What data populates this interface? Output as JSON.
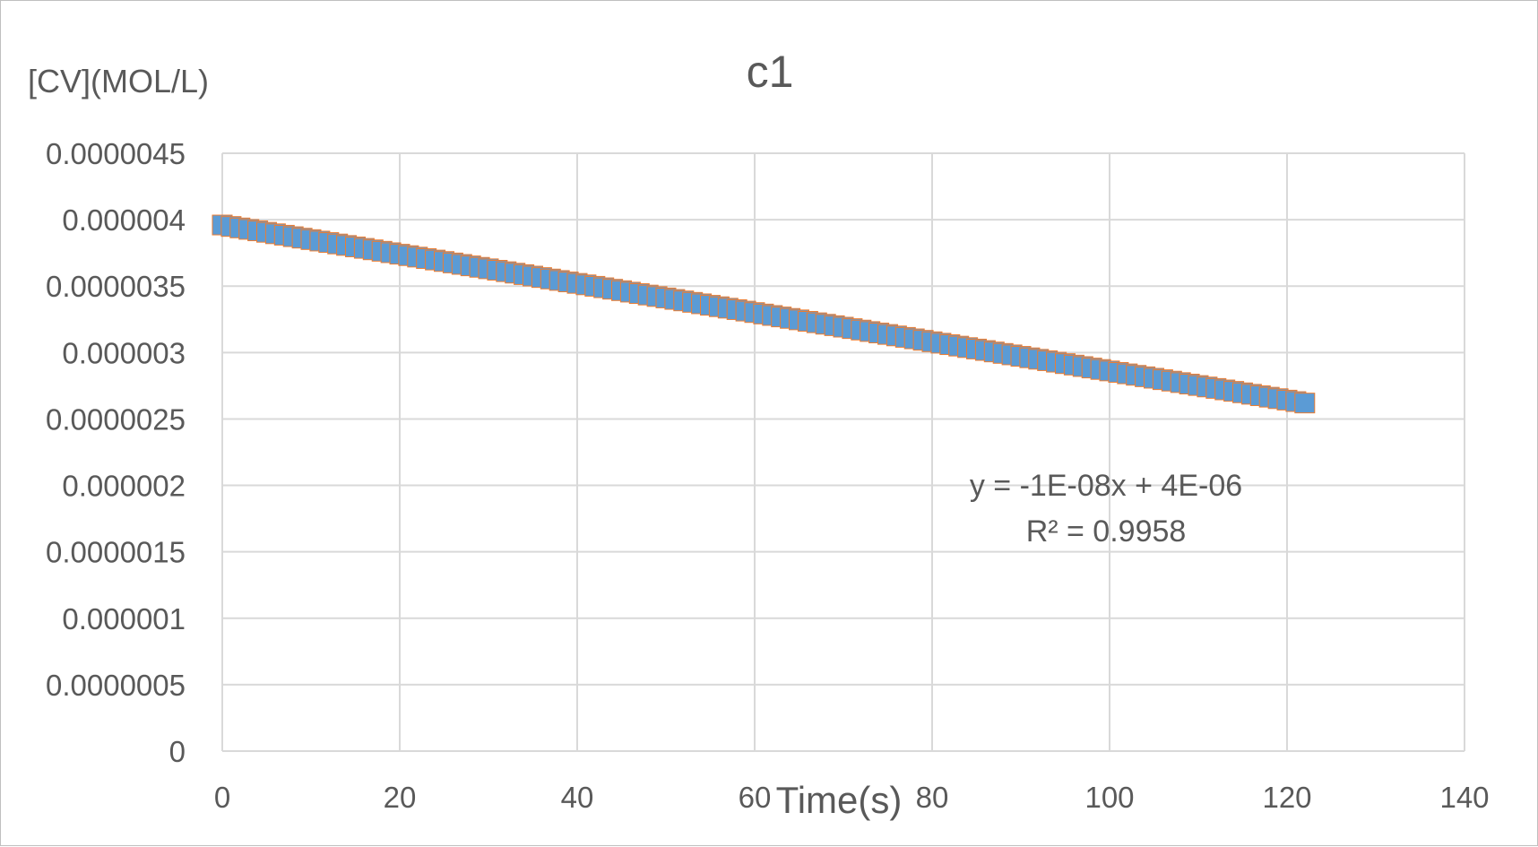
{
  "chart_data": {
    "type": "scatter",
    "title": "c1",
    "xlabel": "Time(s)",
    "ylabel": "[CV](MOL/L)",
    "xlim": [
      0,
      140
    ],
    "ylim": [
      0,
      4.5e-06
    ],
    "x_ticks": [
      "0",
      "20",
      "40",
      "60",
      "80",
      "100",
      "120",
      "140"
    ],
    "y_ticks": [
      "0",
      "0.0000005",
      "0.000001",
      "0.0000015",
      "0.000002",
      "0.0000025",
      "0.000003",
      "0.0000035",
      "0.000004",
      "0.0000045"
    ],
    "grid": true,
    "legend": "none",
    "series": [
      {
        "color": "#5b9bd5",
        "edge_color": "#ed7d31",
        "x_range": [
          0,
          122
        ],
        "y_start": 3.96e-06,
        "y_end": 2.62e-06,
        "marker": "square"
      }
    ],
    "trendline": {
      "equation": "y = -1E-08x + 4E-06",
      "r_squared": "R² = 0.9958"
    },
    "colors": {
      "gridline": "#d9d9d9",
      "text": "#595959",
      "series_fill": "#5b9bd5",
      "series_edge": "#ed7d31"
    }
  }
}
